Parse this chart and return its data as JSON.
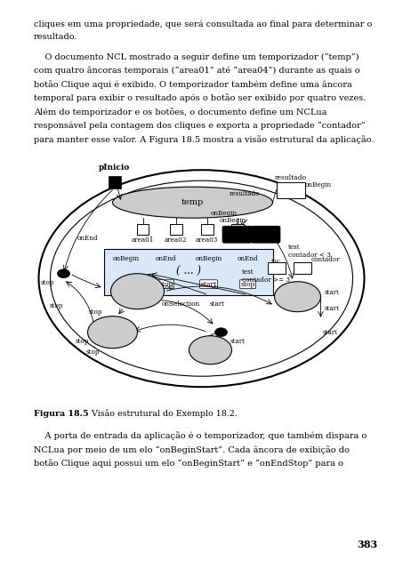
{
  "bg_color": "#ffffff",
  "page_width": 4.53,
  "page_height": 6.4,
  "top_text_lines": [
    "cliques em uma propriedade, que será consultada ao final para determinar o",
    "resultado."
  ],
  "body_text_lines": [
    "    O documento NCL mostrado a seguir define um temporizador (“temp”)",
    "com quatro âncoras temporais (“area01” até “area04”) durante as quais o",
    "botão Clique aqui é exibido. O temporizador também define uma âncora",
    "temporal para exibir o resultado após o botão ser exibido por quatro vezes.",
    "Além do temporizador e os botões, o documento define um NCLua",
    "responsável pela contagem dos cliques e exporta a propriedade “contador”",
    "para manter esse valor. A Figura 18.5 mostra a visão estrutural da aplicação."
  ],
  "figure_caption_bold": "Figura 18.5",
  "figure_caption_rest": " Visão estrutural do Exemplo 18.2.",
  "bottom_text_lines": [
    "    A porta de entrada da aplicação é o temporizador, que também dispara o",
    "NCLua por meio de um elo “onBeginStart”. Cada âncora de exibição do",
    "botão Clique aqui possui um elo “onBeginStart” e “onEndStop” para o"
  ],
  "page_number": "383"
}
